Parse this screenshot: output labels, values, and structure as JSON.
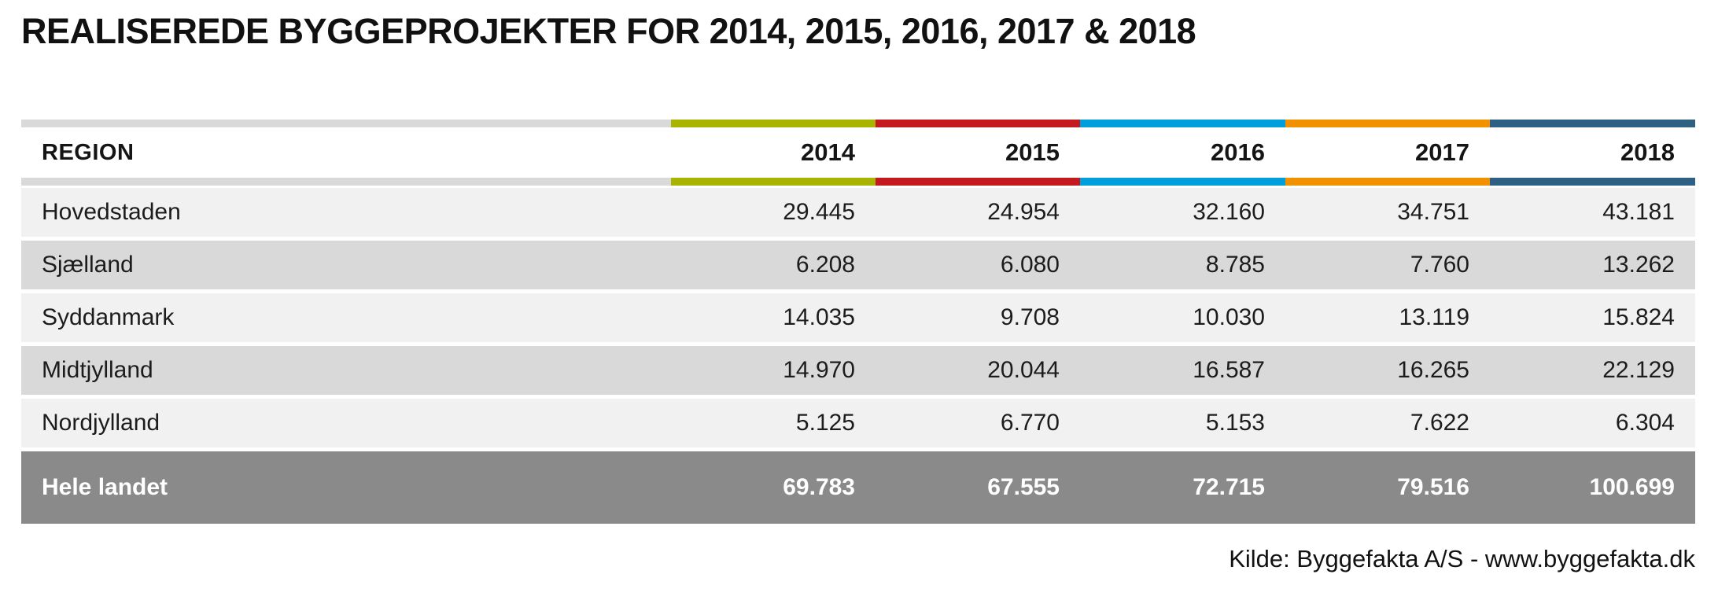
{
  "title": "REALISEREDE BYGGEPROJEKTER FOR 2014, 2015, 2016, 2017 & 2018",
  "table": {
    "region_header": "REGION",
    "years": [
      {
        "label": "2014",
        "color": "#a8b400"
      },
      {
        "label": "2015",
        "color": "#c41a1f"
      },
      {
        "label": "2016",
        "color": "#009fdb"
      },
      {
        "label": "2017",
        "color": "#f29100"
      },
      {
        "label": "2018",
        "color": "#2d6082"
      }
    ],
    "rows": [
      {
        "region": "Hovedstaden",
        "values": [
          "29.445",
          "24.954",
          "32.160",
          "34.751",
          "43.181"
        ]
      },
      {
        "region": "Sjælland",
        "values": [
          "6.208",
          "6.080",
          "8.785",
          "7.760",
          "13.262"
        ]
      },
      {
        "region": "Syddanmark",
        "values": [
          "14.035",
          "9.708",
          "10.030",
          "13.119",
          "15.824"
        ]
      },
      {
        "region": "Midtjylland",
        "values": [
          "14.970",
          "20.044",
          "16.587",
          "16.265",
          "22.129"
        ]
      },
      {
        "region": "Nordjylland",
        "values": [
          "5.125",
          "6.770",
          "5.153",
          "7.622",
          "6.304"
        ]
      }
    ],
    "total_row": {
      "region": "Hele landet",
      "values": [
        "69.783",
        "67.555",
        "72.715",
        "79.516",
        "100.699"
      ]
    }
  },
  "footer": {
    "source": "Kilde: Byggefakta A/S - www.byggefakta.dk"
  },
  "colors": {
    "bar_gray": "#d9d9d9",
    "row_light": "#f1f1f1",
    "row_dark": "#d9d9d9",
    "total_row_bg": "#8a8a8a"
  },
  "chart_data": {
    "type": "table",
    "title": "REALISEREDE BYGGEPROJEKTER FOR 2014, 2015, 2016, 2017 & 2018",
    "columns": [
      "REGION",
      "2014",
      "2015",
      "2016",
      "2017",
      "2018"
    ],
    "rows": [
      [
        "Hovedstaden",
        29445,
        24954,
        32160,
        34751,
        43181
      ],
      [
        "Sjælland",
        6208,
        6080,
        8785,
        7760,
        13262
      ],
      [
        "Syddanmark",
        14035,
        9708,
        10030,
        13119,
        15824
      ],
      [
        "Midtjylland",
        14970,
        20044,
        16587,
        16265,
        22129
      ],
      [
        "Nordjylland",
        5125,
        6770,
        5153,
        7622,
        6304
      ],
      [
        "Hele landet",
        69783,
        67555,
        72715,
        79516,
        100699
      ]
    ],
    "series_colors": {
      "2014": "#a8b400",
      "2015": "#c41a1f",
      "2016": "#009fdb",
      "2017": "#f29100",
      "2018": "#2d6082"
    },
    "source": "Kilde: Byggefakta A/S - www.byggefakta.dk"
  }
}
